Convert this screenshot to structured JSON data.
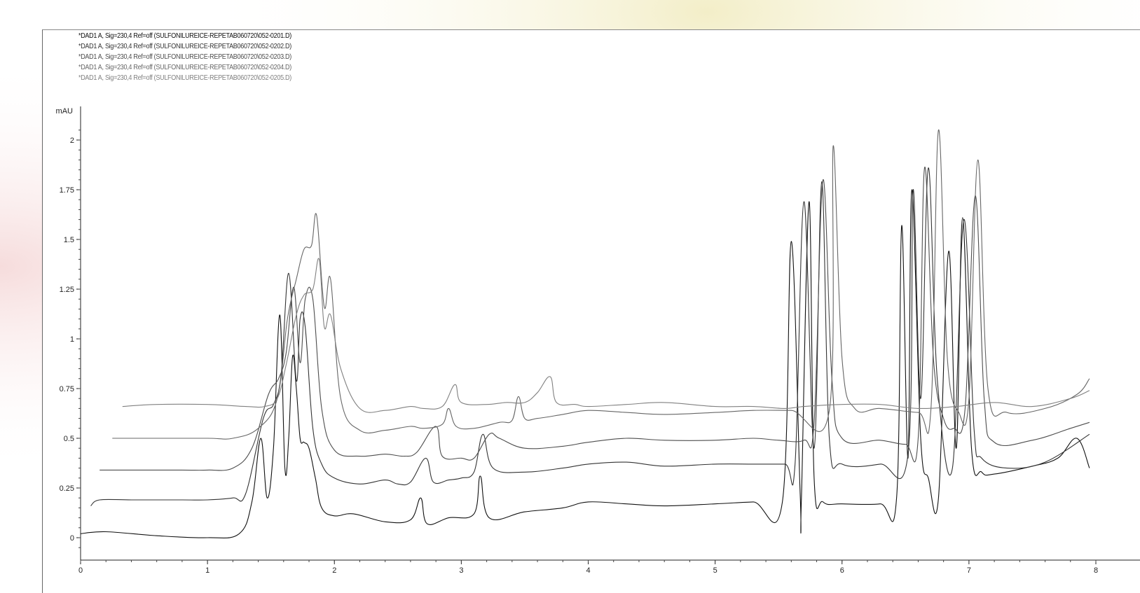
{
  "chart_data": {
    "type": "line",
    "ylabel": "mAU",
    "ylim": [
      -0.1,
      2.25
    ],
    "xlim": [
      0,
      8
    ],
    "y_ticks": [
      "0",
      "0.25",
      "0.5",
      "0.75",
      "1",
      "1.25",
      "1.5",
      "1.75",
      "2"
    ],
    "x_ticks": [
      "0",
      "1",
      "2",
      "3",
      "4",
      "5",
      "6",
      "7",
      "8"
    ],
    "grid": false,
    "legend_position": "top-left",
    "series": [
      {
        "name": "*DAD1 A, Sig=230,4 Ref=off (SULFONILUREICE-REPETAB060720\\052-0201.D)",
        "color": "#111111",
        "points": [
          [
            0.0,
            0.02
          ],
          [
            0.2,
            0.03
          ],
          [
            0.6,
            0.01
          ],
          [
            1.0,
            0.0
          ],
          [
            1.25,
            0.02
          ],
          [
            1.35,
            0.18
          ],
          [
            1.42,
            0.5
          ],
          [
            1.47,
            0.2
          ],
          [
            1.52,
            0.45
          ],
          [
            1.57,
            1.12
          ],
          [
            1.61,
            0.35
          ],
          [
            1.64,
            0.5
          ],
          [
            1.67,
            0.91
          ],
          [
            1.7,
            0.75
          ],
          [
            1.73,
            0.5
          ],
          [
            1.76,
            0.48
          ],
          [
            1.8,
            0.45
          ],
          [
            1.85,
            0.3
          ],
          [
            1.9,
            0.15
          ],
          [
            2.0,
            0.11
          ],
          [
            2.15,
            0.12
          ],
          [
            2.4,
            0.08
          ],
          [
            2.6,
            0.09
          ],
          [
            2.68,
            0.2
          ],
          [
            2.73,
            0.07
          ],
          [
            2.9,
            0.1
          ],
          [
            3.1,
            0.12
          ],
          [
            3.15,
            0.31
          ],
          [
            3.22,
            0.1
          ],
          [
            3.5,
            0.13
          ],
          [
            3.8,
            0.15
          ],
          [
            4.0,
            0.18
          ],
          [
            4.3,
            0.17
          ],
          [
            4.6,
            0.16
          ],
          [
            5.0,
            0.17
          ],
          [
            5.3,
            0.18
          ],
          [
            5.53,
            0.18
          ],
          [
            5.6,
            1.49
          ],
          [
            5.67,
            0.22
          ],
          [
            5.68,
            0.2
          ],
          [
            5.74,
            1.69
          ],
          [
            5.78,
            0.3
          ],
          [
            5.85,
            0.18
          ],
          [
            6.0,
            0.17
          ],
          [
            6.3,
            0.17
          ],
          [
            6.43,
            0.2
          ],
          [
            6.47,
            1.57
          ],
          [
            6.52,
            0.4
          ],
          [
            6.55,
            1.75
          ],
          [
            6.62,
            0.5
          ],
          [
            6.68,
            0.3
          ],
          [
            6.76,
            0.2
          ],
          [
            6.84,
            1.44
          ],
          [
            6.9,
            0.45
          ],
          [
            6.95,
            1.61
          ],
          [
            7.02,
            0.45
          ],
          [
            7.1,
            0.33
          ],
          [
            7.2,
            0.32
          ],
          [
            7.5,
            0.36
          ],
          [
            7.7,
            0.4
          ],
          [
            7.85,
            0.5
          ],
          [
            7.95,
            0.35
          ]
        ]
      },
      {
        "name": "*DAD1 A, Sig=230,4 Ref=off (SULFONILUREICE-REPETAB060720\\052-0202.D)",
        "color": "#333333",
        "points": [
          [
            0.08,
            0.16
          ],
          [
            0.15,
            0.19
          ],
          [
            0.4,
            0.19
          ],
          [
            0.8,
            0.19
          ],
          [
            1.0,
            0.19
          ],
          [
            1.2,
            0.2
          ],
          [
            1.3,
            0.22
          ],
          [
            1.44,
            0.6
          ],
          [
            1.52,
            0.67
          ],
          [
            1.58,
            0.82
          ],
          [
            1.64,
            1.33
          ],
          [
            1.7,
            0.79
          ],
          [
            1.73,
            1.1
          ],
          [
            1.77,
            1.06
          ],
          [
            1.83,
            0.55
          ],
          [
            1.9,
            0.37
          ],
          [
            2.0,
            0.3
          ],
          [
            2.2,
            0.27
          ],
          [
            2.4,
            0.29
          ],
          [
            2.5,
            0.27
          ],
          [
            2.6,
            0.28
          ],
          [
            2.72,
            0.4
          ],
          [
            2.78,
            0.28
          ],
          [
            2.9,
            0.29
          ],
          [
            3.0,
            0.3
          ],
          [
            3.1,
            0.33
          ],
          [
            3.17,
            0.52
          ],
          [
            3.25,
            0.35
          ],
          [
            3.5,
            0.33
          ],
          [
            3.8,
            0.35
          ],
          [
            4.0,
            0.37
          ],
          [
            4.3,
            0.38
          ],
          [
            4.6,
            0.36
          ],
          [
            5.0,
            0.37
          ],
          [
            5.3,
            0.37
          ],
          [
            5.55,
            0.37
          ],
          [
            5.63,
            0.37
          ],
          [
            5.7,
            1.69
          ],
          [
            5.78,
            0.45
          ],
          [
            5.84,
            1.79
          ],
          [
            5.9,
            0.5
          ],
          [
            6.0,
            0.37
          ],
          [
            6.3,
            0.37
          ],
          [
            6.52,
            0.42
          ],
          [
            6.56,
            1.75
          ],
          [
            6.62,
            0.7
          ],
          [
            6.68,
            1.86
          ],
          [
            6.75,
            0.8
          ],
          [
            6.87,
            0.35
          ],
          [
            6.96,
            1.6
          ],
          [
            7.04,
            0.55
          ],
          [
            7.1,
            0.4
          ],
          [
            7.3,
            0.35
          ],
          [
            7.6,
            0.38
          ],
          [
            7.95,
            0.52
          ]
        ]
      },
      {
        "name": "*DAD1 A, Sig=230,4 Ref=off (SULFONILUREICE-REPETAB060720\\052-0203.D)",
        "color": "#4d4d4d",
        "points": [
          [
            0.15,
            0.34
          ],
          [
            0.4,
            0.34
          ],
          [
            0.8,
            0.34
          ],
          [
            1.0,
            0.34
          ],
          [
            1.2,
            0.35
          ],
          [
            1.35,
            0.45
          ],
          [
            1.48,
            0.72
          ],
          [
            1.56,
            0.8
          ],
          [
            1.62,
            0.93
          ],
          [
            1.68,
            1.26
          ],
          [
            1.73,
            0.88
          ],
          [
            1.77,
            1.2
          ],
          [
            1.83,
            1.2
          ],
          [
            1.9,
            0.65
          ],
          [
            2.0,
            0.44
          ],
          [
            2.2,
            0.41
          ],
          [
            2.4,
            0.42
          ],
          [
            2.55,
            0.41
          ],
          [
            2.65,
            0.43
          ],
          [
            2.8,
            0.56
          ],
          [
            2.85,
            0.41
          ],
          [
            3.0,
            0.4
          ],
          [
            3.1,
            0.4
          ],
          [
            3.22,
            0.52
          ],
          [
            3.3,
            0.5
          ],
          [
            3.5,
            0.45
          ],
          [
            3.8,
            0.46
          ],
          [
            4.0,
            0.48
          ],
          [
            4.3,
            0.5
          ],
          [
            4.6,
            0.49
          ],
          [
            5.0,
            0.49
          ],
          [
            5.3,
            0.5
          ],
          [
            5.5,
            0.49
          ],
          [
            5.7,
            0.49
          ],
          [
            5.78,
            0.58
          ],
          [
            5.85,
            1.8
          ],
          [
            5.92,
            0.8
          ],
          [
            6.0,
            0.5
          ],
          [
            6.3,
            0.49
          ],
          [
            6.5,
            0.47
          ],
          [
            6.6,
            0.5
          ],
          [
            6.65,
            1.86
          ],
          [
            6.72,
            0.9
          ],
          [
            6.8,
            0.6
          ],
          [
            6.88,
            0.55
          ],
          [
            6.97,
            0.65
          ],
          [
            7.05,
            1.72
          ],
          [
            7.12,
            0.7
          ],
          [
            7.2,
            0.48
          ],
          [
            7.5,
            0.49
          ],
          [
            7.8,
            0.55
          ],
          [
            7.95,
            0.58
          ]
        ]
      },
      {
        "name": "*DAD1 A, Sig=230,4 Ref=off (SULFONILUREICE-REPETAB060720\\052-0204.D)",
        "color": "#666666",
        "points": [
          [
            0.25,
            0.5
          ],
          [
            0.6,
            0.5
          ],
          [
            1.0,
            0.5
          ],
          [
            1.2,
            0.5
          ],
          [
            1.4,
            0.55
          ],
          [
            1.55,
            0.7
          ],
          [
            1.63,
            1.1
          ],
          [
            1.7,
            1.3
          ],
          [
            1.76,
            1.45
          ],
          [
            1.82,
            1.47
          ],
          [
            1.86,
            1.62
          ],
          [
            1.92,
            1.16
          ],
          [
            1.97,
            1.3
          ],
          [
            2.05,
            0.7
          ],
          [
            2.2,
            0.54
          ],
          [
            2.4,
            0.54
          ],
          [
            2.6,
            0.56
          ],
          [
            2.7,
            0.55
          ],
          [
            2.85,
            0.57
          ],
          [
            2.9,
            0.65
          ],
          [
            2.96,
            0.56
          ],
          [
            3.1,
            0.55
          ],
          [
            3.3,
            0.58
          ],
          [
            3.4,
            0.59
          ],
          [
            3.45,
            0.71
          ],
          [
            3.5,
            0.6
          ],
          [
            3.6,
            0.6
          ],
          [
            3.8,
            0.62
          ],
          [
            4.0,
            0.64
          ],
          [
            4.3,
            0.63
          ],
          [
            4.6,
            0.62
          ],
          [
            5.0,
            0.63
          ],
          [
            5.3,
            0.64
          ],
          [
            5.6,
            0.64
          ],
          [
            5.9,
            0.64
          ],
          [
            5.93,
            1.97
          ],
          [
            6.0,
            0.9
          ],
          [
            6.1,
            0.65
          ],
          [
            6.3,
            0.65
          ],
          [
            6.6,
            0.63
          ],
          [
            6.7,
            0.64
          ],
          [
            6.76,
            2.05
          ],
          [
            6.83,
            0.9
          ],
          [
            6.92,
            0.63
          ],
          [
            7.0,
            0.7
          ],
          [
            7.07,
            1.9
          ],
          [
            7.15,
            0.75
          ],
          [
            7.3,
            0.63
          ],
          [
            7.6,
            0.65
          ],
          [
            7.85,
            0.72
          ],
          [
            7.95,
            0.8
          ]
        ]
      },
      {
        "name": "*DAD1 A, Sig=230,4 Ref=off (SULFONILUREICE-REPETAB060720\\052-0205.D)",
        "color": "#808080",
        "points": [
          [
            0.33,
            0.66
          ],
          [
            0.6,
            0.67
          ],
          [
            1.0,
            0.67
          ],
          [
            1.3,
            0.66
          ],
          [
            1.45,
            0.66
          ],
          [
            1.55,
            0.7
          ],
          [
            1.62,
            0.87
          ],
          [
            1.7,
            1.12
          ],
          [
            1.76,
            1.22
          ],
          [
            1.83,
            1.25
          ],
          [
            1.88,
            1.4
          ],
          [
            1.92,
            1.06
          ],
          [
            1.97,
            1.12
          ],
          [
            2.05,
            0.85
          ],
          [
            2.2,
            0.65
          ],
          [
            2.4,
            0.64
          ],
          [
            2.6,
            0.66
          ],
          [
            2.7,
            0.65
          ],
          [
            2.85,
            0.66
          ],
          [
            2.95,
            0.77
          ],
          [
            3.0,
            0.68
          ],
          [
            3.2,
            0.67
          ],
          [
            3.35,
            0.68
          ],
          [
            3.5,
            0.68
          ],
          [
            3.6,
            0.73
          ],
          [
            3.7,
            0.81
          ],
          [
            3.75,
            0.68
          ],
          [
            3.9,
            0.67
          ],
          [
            4.0,
            0.66
          ],
          [
            4.3,
            0.67
          ],
          [
            4.6,
            0.68
          ],
          [
            5.0,
            0.66
          ],
          [
            5.3,
            0.66
          ],
          [
            5.55,
            0.65
          ],
          [
            5.7,
            0.66
          ],
          [
            6.0,
            0.67
          ],
          [
            6.3,
            0.67
          ],
          [
            6.6,
            0.65
          ],
          [
            6.9,
            0.66
          ],
          [
            7.2,
            0.68
          ],
          [
            7.5,
            0.66
          ],
          [
            7.8,
            0.7
          ],
          [
            7.95,
            0.74
          ]
        ]
      }
    ]
  }
}
